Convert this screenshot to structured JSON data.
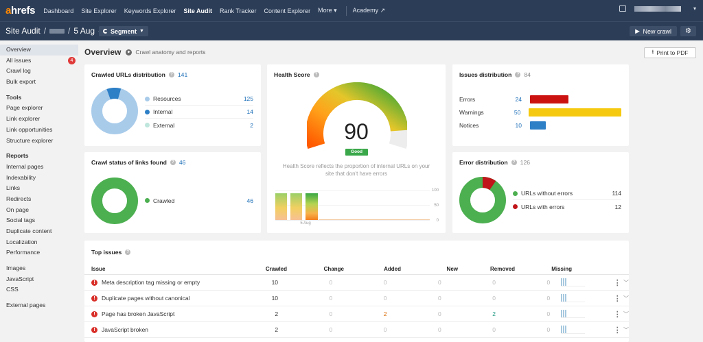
{
  "topnav": {
    "logo_a": "a",
    "logo_rest": "hrefs",
    "links": [
      "Dashboard",
      "Site Explorer",
      "Keywords Explorer",
      "Site Audit",
      "Rank Tracker",
      "Content Explorer",
      "More ▾"
    ],
    "academy": "Academy ↗",
    "menu_arrow": "▾"
  },
  "subheader": {
    "title": "Site Audit",
    "sep": "/",
    "date": "5 Aug",
    "segment_label": "Segment",
    "new_crawl_label": "New crawl",
    "plus": "+"
  },
  "sidebar": {
    "group1": [
      {
        "label": "Overview"
      },
      {
        "label": "All issues",
        "badge": "4"
      },
      {
        "label": "Crawl log"
      },
      {
        "label": "Bulk export"
      }
    ],
    "tools_header": "Tools",
    "tools": [
      "Page explorer",
      "Link explorer",
      "Link opportunities",
      "Structure explorer"
    ],
    "reports_header": "Reports",
    "reports": [
      "Internal pages",
      "Indexability",
      "Links",
      "Redirects",
      "On page",
      "Social tags",
      "Duplicate content",
      "Localization",
      "Performance"
    ],
    "assets": [
      "Images",
      "JavaScript",
      "CSS"
    ],
    "external": "External pages"
  },
  "overview": {
    "title": "Overview",
    "subtitle": "Crawl anatomy and reports",
    "pdf_label": "Print to PDF"
  },
  "crawled_urls": {
    "title": "Crawled URLs distribution",
    "count": "141",
    "items": [
      {
        "label": "Resources",
        "value": "125",
        "color": "#a8cbea"
      },
      {
        "label": "Internal",
        "value": "14",
        "color": "#2d7fc6"
      },
      {
        "label": "External",
        "value": "2",
        "color": "#bfe6dc"
      }
    ]
  },
  "health": {
    "title": "Health Score",
    "score": "90",
    "score_value": 90,
    "status": "Good",
    "description": "Health Score reflects the proportion of internal URLs on your site that don't have errors",
    "axis": [
      "100",
      "50",
      "0"
    ],
    "date_label": "5 Aug"
  },
  "issues_dist": {
    "title": "Issues distribution",
    "count": "84",
    "items": [
      {
        "label": "Errors",
        "value": "24",
        "color": "#cc1111",
        "fraction": 0.41
      },
      {
        "label": "Warnings",
        "value": "50",
        "color": "#f5c90f",
        "fraction": 1.0
      },
      {
        "label": "Notices",
        "value": "10",
        "color": "#2d7fc6",
        "fraction": 0.17
      }
    ]
  },
  "crawl_status": {
    "title": "Crawl status of links found",
    "count": "46",
    "items": [
      {
        "label": "Crawled",
        "value": "46",
        "color": "#4caf50"
      }
    ]
  },
  "error_dist": {
    "title": "Error distribution",
    "count": "126",
    "items": [
      {
        "label": "URLs without errors",
        "value": "114",
        "color": "#4caf50"
      },
      {
        "label": "URLs with errors",
        "value": "12",
        "color": "#c0151a"
      }
    ]
  },
  "top_issues": {
    "title": "Top issues",
    "columns": [
      "Issue",
      "Crawled",
      "Change",
      "Added",
      "New",
      "Removed",
      "Missing"
    ],
    "rows": [
      {
        "issue": "Meta description tag missing or empty",
        "crawled": "10",
        "change": "0",
        "added": "0",
        "new": "0",
        "removed": "0",
        "missing": "0"
      },
      {
        "issue": "Duplicate pages without canonical",
        "crawled": "10",
        "change": "0",
        "added": "0",
        "new": "0",
        "removed": "0",
        "missing": "0"
      },
      {
        "issue": "Page has broken JavaScript",
        "crawled": "2",
        "change": "0",
        "added": "2",
        "new": "0",
        "removed": "2",
        "missing": "0"
      },
      {
        "issue": "JavaScript broken",
        "crawled": "2",
        "change": "0",
        "added": "0",
        "new": "0",
        "removed": "0",
        "missing": "0"
      }
    ]
  }
}
